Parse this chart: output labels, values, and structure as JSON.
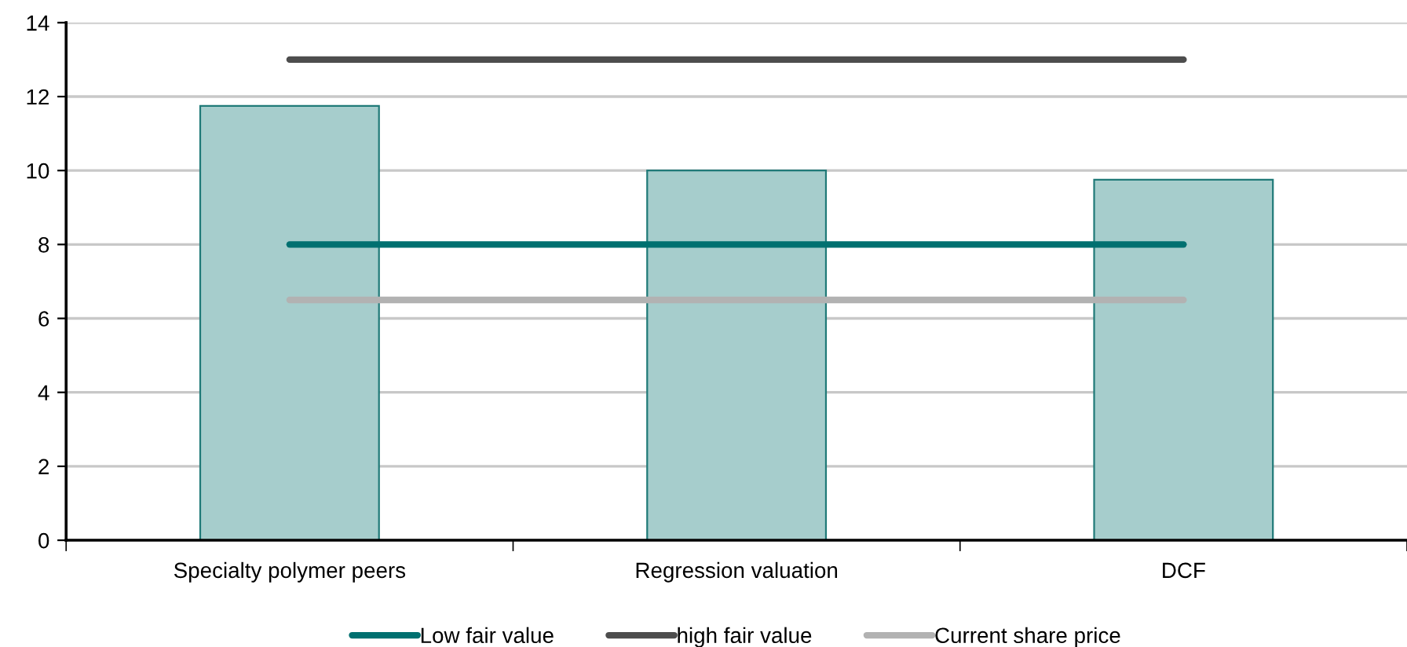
{
  "chart_data": {
    "type": "bar",
    "categories": [
      "Specialty polymer peers",
      "Regression valuation",
      "DCF"
    ],
    "series": [
      {
        "color": "#a6cdcc",
        "values": [
          11.75,
          10.0,
          9.75
        ]
      },
      {
        "type": "line",
        "name": "Low fair value",
        "color": "#007070",
        "values": [
          8,
          8,
          8
        ]
      },
      {
        "type": "line",
        "name": "high fair value",
        "color": "#4d4d4d",
        "values": [
          13,
          13,
          13
        ]
      },
      {
        "type": "line",
        "name": "Current share price",
        "color": "#b2b2b2",
        "values": [
          6.5,
          6.5,
          6.5
        ]
      }
    ],
    "ylim": [
      0,
      14
    ],
    "yticks": [
      0,
      2,
      4,
      6,
      8,
      10,
      12,
      14
    ],
    "grid": "y",
    "legend": "bottom",
    "marker": "none",
    "line_style": "solid"
  }
}
